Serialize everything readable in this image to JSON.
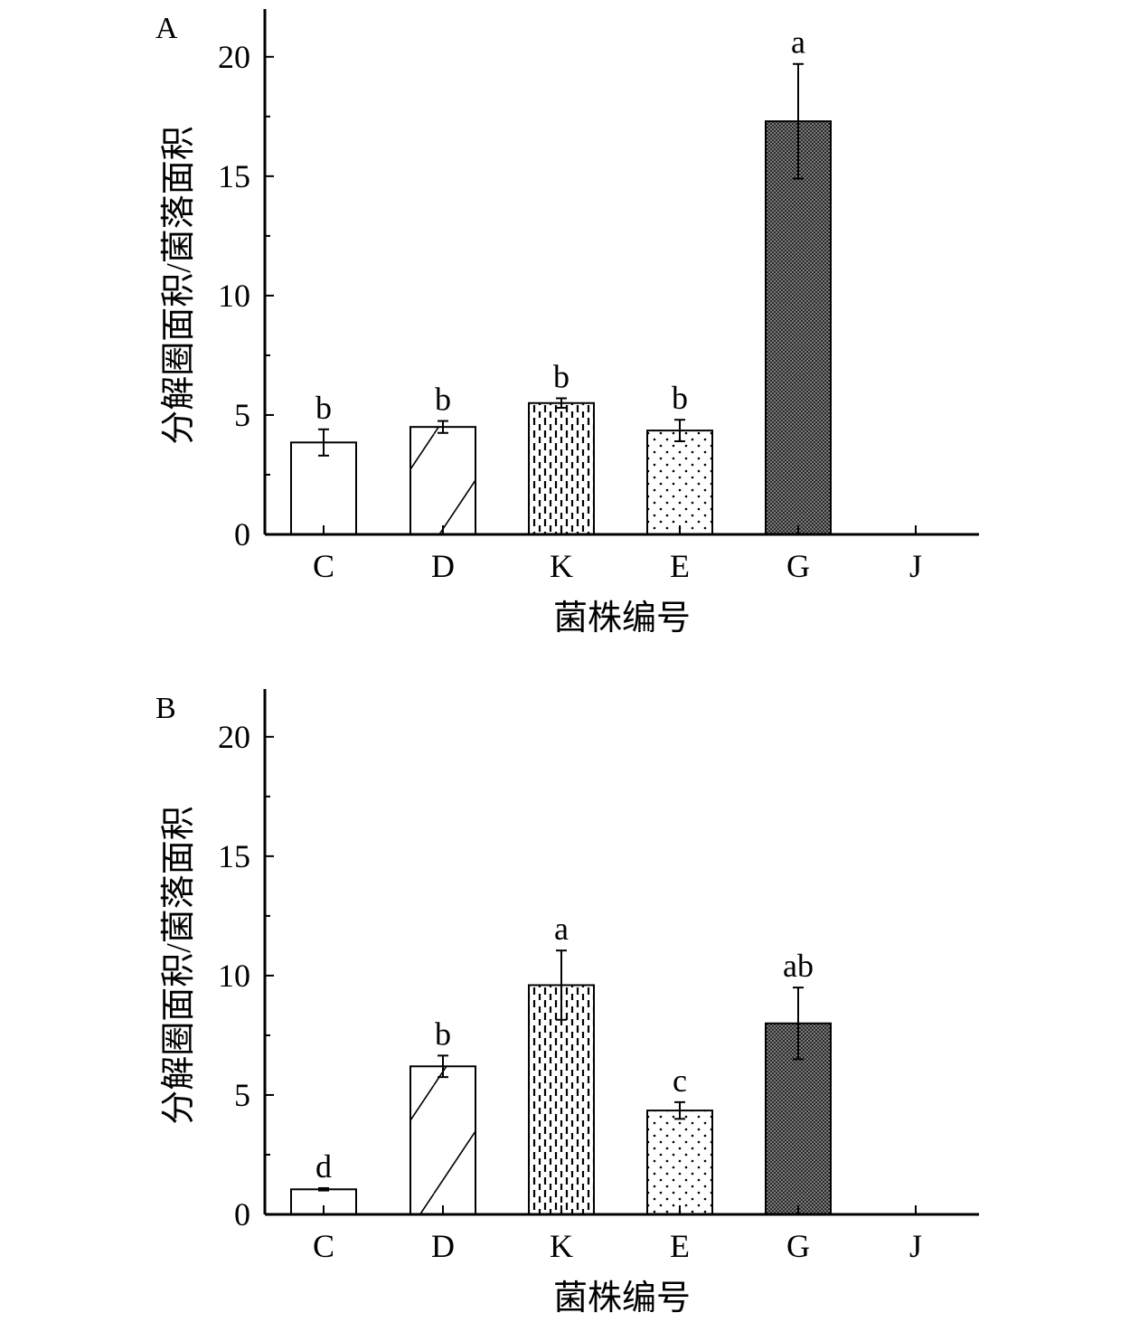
{
  "figure": {
    "panels": [
      "A",
      "B"
    ]
  },
  "chart_data": [
    {
      "panel_label": "A",
      "type": "bar",
      "categories": [
        "C",
        "D",
        "K",
        "E",
        "G",
        "J"
      ],
      "values": [
        3.85,
        4.5,
        5.5,
        4.35,
        17.3,
        0
      ],
      "errors": [
        0.55,
        0.25,
        0.2,
        0.45,
        2.4,
        0
      ],
      "significance": [
        "b",
        "b",
        "b",
        "b",
        "a",
        ""
      ],
      "patterns": [
        "none",
        "diagonal",
        "dashes",
        "dots",
        "dense",
        "none"
      ],
      "xlabel": "菌株编号",
      "ylabel": "分解圈面积/菌落面积",
      "ylim": [
        0,
        22
      ],
      "yticks": [
        0,
        5,
        10,
        15,
        20
      ],
      "legend": "none",
      "grid": false
    },
    {
      "panel_label": "B",
      "type": "bar",
      "categories": [
        "C",
        "D",
        "K",
        "E",
        "G",
        "J"
      ],
      "values": [
        1.05,
        6.2,
        9.6,
        4.35,
        8.0,
        0
      ],
      "errors": [
        0.05,
        0.45,
        1.45,
        0.35,
        1.5,
        0
      ],
      "significance": [
        "d",
        "b",
        "a",
        "c",
        "ab",
        ""
      ],
      "patterns": [
        "none",
        "diagonal",
        "dashes",
        "dots",
        "dense",
        "none"
      ],
      "xlabel": "菌株编号",
      "ylabel": "分解圈面积/菌落面积",
      "ylim": [
        0,
        22
      ],
      "yticks": [
        0,
        5,
        10,
        15,
        20
      ],
      "legend": "none",
      "grid": false
    }
  ]
}
